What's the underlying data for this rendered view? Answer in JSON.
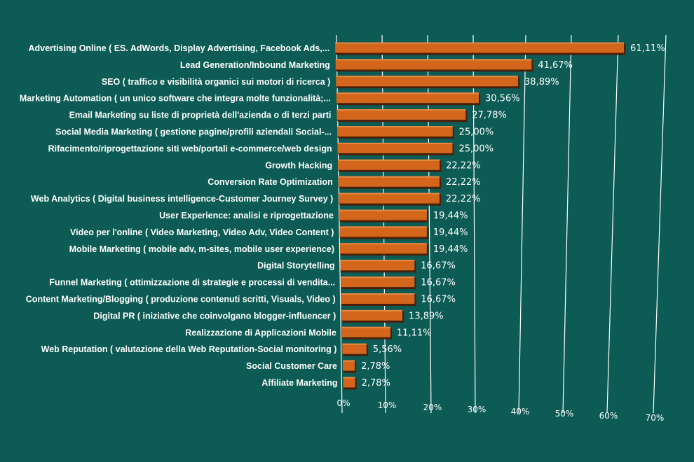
{
  "chart_data": {
    "type": "bar",
    "orientation": "horizontal",
    "style": "3d-perspective",
    "categories": [
      "Advertising Online ( ES. AdWords, Display Advertising, Facebook Ads,...",
      "Lead Generation/Inbound Marketing",
      "SEO ( traffico e visibilità organici sui motori di ricerca )",
      "Marketing Automation ( un unico software che integra molte funzionalità;...",
      "Email Marketing su liste di proprietà dell'azienda o di terzi parti",
      "Social Media Marketing ( gestione pagine/profili aziendali Social-...",
      "Rifacimento/riprogettazione siti web/portali e-commerce/web design",
      "Growth Hacking",
      "Conversion Rate Optimization",
      "Web Analytics ( Digital business intelligence-Customer Journey Survey )",
      "User Experience: analisi e riprogettazione",
      "Video per l'online ( Video Marketing, Video Adv, Video Content )",
      "Mobile Marketing ( mobile adv, m-sites, mobile user experience)",
      "Digital Storytelling",
      "Funnel Marketing ( ottimizzazione di strategie e processi di vendita...",
      "Content Marketing/Blogging ( produzione contenuti scritti, Visuals, Video )",
      "Digital PR ( iniziative che coinvolgano blogger-influencer )",
      "Realizzazione di Applicazioni Mobile",
      "Web Reputation ( valutazione della Web Reputation-Social monitoring )",
      "Social Customer Care",
      "Affiliate Marketing"
    ],
    "values": [
      61.11,
      41.67,
      38.89,
      30.56,
      27.78,
      25.0,
      25.0,
      22.22,
      22.22,
      22.22,
      19.44,
      19.44,
      19.44,
      16.67,
      16.67,
      16.67,
      13.89,
      11.11,
      5.56,
      2.78,
      2.78
    ],
    "value_labels": [
      "61,11%",
      "41,67%",
      "38,89%",
      "30,56%",
      "27,78%",
      "25,00%",
      "25,00%",
      "22,22%",
      "22,22%",
      "22,22%",
      "19,44%",
      "19,44%",
      "19,44%",
      "16,67%",
      "16,67%",
      "16,67%",
      "13,89%",
      "11,11%",
      "5,56%",
      "2,78%",
      "2,78%"
    ],
    "x_ticks": [
      "0%",
      "10%",
      "20%",
      "30%",
      "40%",
      "50%",
      "60%",
      "70%"
    ],
    "xlim": [
      0,
      70
    ],
    "grid": true,
    "colors": {
      "background": "#0c5b55",
      "bar_front": "#d4661b",
      "bar_top": "#e58a45",
      "bar_side": "#4a1e08",
      "gridline": "#ffffff",
      "text": "#ffffff"
    }
  }
}
